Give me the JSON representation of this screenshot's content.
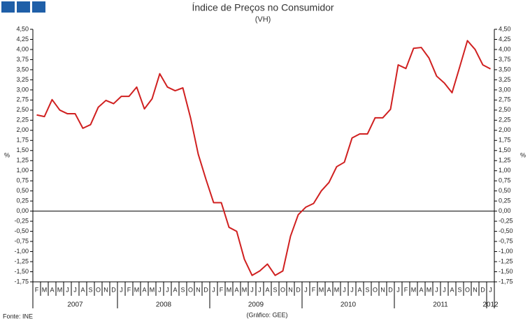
{
  "chart_data": {
    "type": "line",
    "title": "Índice de Preços no Consumidor",
    "subtitle": "(VH)",
    "y_label": "%",
    "y2_label": "%",
    "source": "Fonte: INE",
    "credit": "(Gráfico: GEE)",
    "color": "#d02020",
    "categories": [
      "F",
      "M",
      "A",
      "M",
      "J",
      "J",
      "A",
      "S",
      "O",
      "N",
      "D",
      "J",
      "F",
      "M",
      "A",
      "M",
      "J",
      "J",
      "A",
      "S",
      "O",
      "N",
      "D",
      "J",
      "F",
      "M",
      "A",
      "M",
      "J",
      "J",
      "A",
      "S",
      "O",
      "N",
      "D",
      "J",
      "F",
      "M",
      "A",
      "M",
      "J",
      "J",
      "A",
      "S",
      "O",
      "N",
      "D",
      "J",
      "F",
      "M",
      "A",
      "M",
      "J",
      "J",
      "A",
      "S",
      "O",
      "N",
      "D",
      "J"
    ],
    "groups": [
      {
        "label": "2007",
        "count": 11
      },
      {
        "label": "2008",
        "count": 12
      },
      {
        "label": "2009",
        "count": 12
      },
      {
        "label": "2010",
        "count": 12
      },
      {
        "label": "2011",
        "count": 12
      },
      {
        "label": "2012",
        "count": 1
      }
    ],
    "values": [
      2.38,
      2.34,
      2.76,
      2.5,
      2.41,
      2.41,
      2.05,
      2.14,
      2.57,
      2.74,
      2.66,
      2.84,
      2.84,
      3.07,
      2.53,
      2.78,
      3.4,
      3.07,
      2.98,
      3.05,
      2.31,
      1.41,
      0.79,
      0.21,
      0.21,
      -0.4,
      -0.5,
      -1.19,
      -1.59,
      -1.48,
      -1.31,
      -1.59,
      -1.48,
      -0.62,
      -0.09,
      0.1,
      0.19,
      0.5,
      0.71,
      1.1,
      1.21,
      1.81,
      1.91,
      1.91,
      2.31,
      2.31,
      2.52,
      3.62,
      3.53,
      4.03,
      4.05,
      3.79,
      3.34,
      3.17,
      2.93,
      3.57,
      4.22,
      4.0,
      3.62,
      3.52
    ],
    "ylim": [
      -1.75,
      4.5
    ],
    "yticks": [
      {
        "value": 4.5,
        "label": "4,50"
      },
      {
        "value": 4.25,
        "label": "4,25"
      },
      {
        "value": 4,
        "label": "4,00"
      },
      {
        "value": 3.75,
        "label": "3,75"
      },
      {
        "value": 3.5,
        "label": "3,50"
      },
      {
        "value": 3.25,
        "label": "3,25"
      },
      {
        "value": 3,
        "label": "3,00"
      },
      {
        "value": 2.75,
        "label": "2,75"
      },
      {
        "value": 2.5,
        "label": "2,50"
      },
      {
        "value": 2.25,
        "label": "2,25"
      },
      {
        "value": 2,
        "label": "2,00"
      },
      {
        "value": 1.75,
        "label": "1,75"
      },
      {
        "value": 1.5,
        "label": "1,50"
      },
      {
        "value": 1.25,
        "label": "1,25"
      },
      {
        "value": 1,
        "label": "1,00"
      },
      {
        "value": 0.75,
        "label": "0,75"
      },
      {
        "value": 0.5,
        "label": "0,50"
      },
      {
        "value": 0.25,
        "label": "0,25"
      },
      {
        "value": 0,
        "label": "0,00"
      },
      {
        "value": -0.25,
        "label": "-0,25"
      },
      {
        "value": -0.5,
        "label": "-0,50"
      },
      {
        "value": -0.75,
        "label": "-0,75"
      },
      {
        "value": -1,
        "label": "-1,00"
      },
      {
        "value": -1.25,
        "label": "-1,25"
      },
      {
        "value": -1.5,
        "label": "-1,50"
      },
      {
        "value": -1.75,
        "label": "-1,75"
      }
    ],
    "y2lim": [
      -1.75,
      4.5
    ],
    "y2ticks": [
      {
        "value": 4.5,
        "label": "4,50"
      },
      {
        "value": 4.25,
        "label": "4,25"
      },
      {
        "value": 4,
        "label": "4,00"
      },
      {
        "value": 3.75,
        "label": "3,75"
      },
      {
        "value": 3.5,
        "label": "3,50"
      },
      {
        "value": 3.25,
        "label": "3,25"
      },
      {
        "value": 3,
        "label": "3,00"
      },
      {
        "value": 2.75,
        "label": "2,75"
      },
      {
        "value": 2.5,
        "label": "2,50"
      },
      {
        "value": 2.25,
        "label": "2,25"
      },
      {
        "value": 2,
        "label": "2,00"
      },
      {
        "value": 1.75,
        "label": "1,75"
      },
      {
        "value": 1.5,
        "label": "1,50"
      },
      {
        "value": 1.25,
        "label": "1,25"
      },
      {
        "value": 1,
        "label": "1,00"
      },
      {
        "value": 0.75,
        "label": "0,75"
      },
      {
        "value": 0.5,
        "label": "0,50"
      },
      {
        "value": 0.25,
        "label": "0,25"
      },
      {
        "value": 0,
        "label": "0,00"
      },
      {
        "value": -0.25,
        "label": "-0,25"
      },
      {
        "value": -0.5,
        "label": "-0,50"
      },
      {
        "value": -0.75,
        "label": "-0,75"
      },
      {
        "value": -1,
        "label": "-1,00"
      },
      {
        "value": -1.25,
        "label": "-1,25"
      },
      {
        "value": -1.5,
        "label": "-1,50"
      },
      {
        "value": -1.75,
        "label": "-1,75"
      }
    ]
  }
}
